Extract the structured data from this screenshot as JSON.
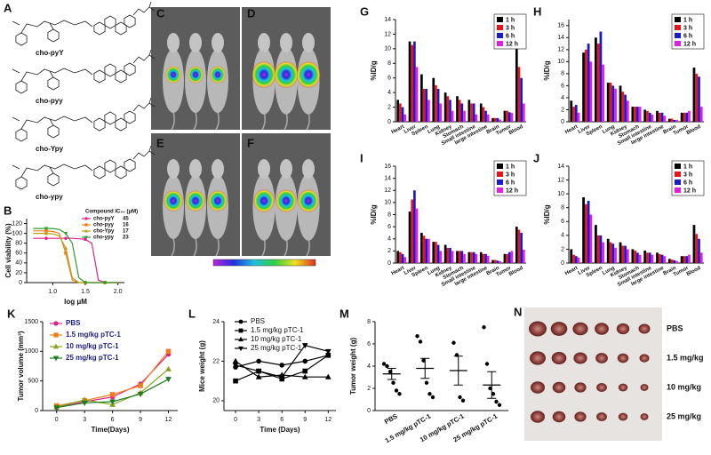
{
  "figure": {
    "A": {
      "panel": "A",
      "compounds": [
        "cho-pyY",
        "cho-pyy",
        "cho-Ypy",
        "cho-ypy"
      ]
    },
    "C": "C",
    "D": "D",
    "E": "E",
    "F": "F",
    "N": {
      "panel": "N",
      "groups": [
        "PBS",
        "1.5 mg/kg",
        "10 mg/kg",
        "25 mg/kg"
      ]
    }
  },
  "chart_data": [
    {
      "type": "line",
      "panel": "B",
      "x_label": "log μM",
      "y_label": "Cell viability (%)",
      "legend_title": "Compound IC₅₀ (μM)",
      "x": [
        0.7,
        0.9,
        1.0,
        1.1,
        1.2,
        1.3,
        1.4,
        1.5,
        1.6,
        1.7,
        1.8,
        2.0
      ],
      "xlim": [
        0.6,
        2.1
      ],
      "xticks": [
        {
          "value": 1,
          "label": "1.0"
        },
        {
          "value": 1.5,
          "label": "1.5"
        },
        {
          "value": 2,
          "label": "2.0"
        }
      ],
      "ylim": [
        0,
        130
      ],
      "yticks": [
        0,
        20,
        40,
        60,
        80,
        100,
        120
      ],
      "series": [
        {
          "name": "cho-pyY",
          "ic50": 45,
          "color": "#e0218a",
          "marker": "circle",
          "values": [
            90,
            90,
            90,
            90,
            90,
            90,
            89,
            88,
            80,
            5,
            0,
            0
          ]
        },
        {
          "name": "cho-pyy",
          "ic50": 16,
          "color": "#f07d1a",
          "marker": "square",
          "values": [
            105,
            105,
            104,
            100,
            60,
            5,
            0,
            0,
            0,
            0,
            0,
            0
          ]
        },
        {
          "name": "cho-Ypy",
          "ic50": 17,
          "color": "#b8a018",
          "marker": "triangle",
          "values": [
            100,
            100,
            99,
            95,
            70,
            10,
            0,
            0,
            0,
            0,
            0,
            0
          ]
        },
        {
          "name": "cho-ypy",
          "ic50": 23,
          "color": "#2e9a2e",
          "marker": "triangle-down",
          "values": [
            110,
            110,
            110,
            108,
            100,
            80,
            10,
            0,
            0,
            0,
            0,
            0
          ]
        }
      ]
    },
    {
      "type": "bar",
      "panel": "G",
      "y_label": "%ID/g",
      "categories": [
        "Heart",
        "Liver",
        "Spleen",
        "Lung",
        "Kidney",
        "Stomach",
        "Small intestine",
        "large intestine",
        "Brain",
        "Tumor",
        "Blood"
      ],
      "ylim": [
        0,
        14
      ],
      "yticks": [
        0,
        2,
        4,
        6,
        8,
        10,
        12,
        14
      ],
      "series": [
        {
          "name": "1 h",
          "color": "#000000",
          "values": [
            3,
            11,
            6.5,
            6,
            4,
            3.5,
            3,
            2.5,
            0.5,
            1.5,
            10
          ]
        },
        {
          "name": "3 h",
          "color": "#e8141c",
          "values": [
            2.5,
            10.5,
            4.5,
            5,
            3.5,
            3,
            2.5,
            2,
            0.5,
            1.5,
            7.5
          ]
        },
        {
          "name": "6 h",
          "color": "#1a1acd",
          "values": [
            2,
            11,
            4.5,
            4.5,
            3,
            2.5,
            2.5,
            1.5,
            0.5,
            1.3,
            6
          ]
        },
        {
          "name": "12 h",
          "color": "#e020e0",
          "values": [
            1,
            7.5,
            3,
            2.5,
            1.5,
            1.5,
            1,
            1,
            0.3,
            1.2,
            2.5
          ]
        }
      ]
    },
    {
      "type": "bar",
      "panel": "H",
      "y_label": "%ID/g",
      "categories": [
        "Heart",
        "Liver",
        "Spleen",
        "Lung",
        "Kidney",
        "Stomach",
        "Small intestine",
        "large intestine",
        "Brain",
        "Tumor",
        "Blood"
      ],
      "ylim": [
        0,
        17
      ],
      "yticks": [
        0,
        2,
        4,
        6,
        8,
        10,
        12,
        14,
        16
      ],
      "series": [
        {
          "name": "1 h",
          "color": "#000000",
          "values": [
            3.5,
            11.5,
            14,
            6.5,
            6,
            2.5,
            2,
            1.8,
            0.5,
            1.5,
            9
          ]
        },
        {
          "name": "3 h",
          "color": "#e8141c",
          "values": [
            2.5,
            12,
            13,
            6.5,
            5,
            2.5,
            1.8,
            1.5,
            0.5,
            1.5,
            8
          ]
        },
        {
          "name": "6 h",
          "color": "#1a1acd",
          "values": [
            2.8,
            13,
            15,
            6,
            4.5,
            2.5,
            1.5,
            1.5,
            0.3,
            1.5,
            7.5
          ]
        },
        {
          "name": "12 h",
          "color": "#e020e0",
          "values": [
            1.5,
            10,
            9.5,
            5.5,
            3.5,
            2.5,
            1.2,
            1,
            0.3,
            1.8,
            2.5
          ]
        }
      ]
    },
    {
      "type": "bar",
      "panel": "I",
      "y_label": "%ID/g",
      "categories": [
        "Heart",
        "Liver",
        "Spleen",
        "Lung",
        "Kidney",
        "Stomach",
        "Small intestine",
        "large intestine",
        "Brain",
        "Tumor",
        "Blood"
      ],
      "ylim": [
        0,
        16
      ],
      "yticks": [
        0,
        2,
        4,
        6,
        8,
        10,
        12,
        14,
        16
      ],
      "series": [
        {
          "name": "1 h",
          "color": "#000000",
          "values": [
            2,
            8.5,
            5,
            3.5,
            3,
            2,
            1.8,
            1.8,
            0.5,
            1.5,
            6
          ]
        },
        {
          "name": "3 h",
          "color": "#e8141c",
          "values": [
            1.8,
            10.5,
            4.5,
            3.5,
            2.5,
            2,
            1.8,
            1.5,
            0.5,
            1.5,
            5.5
          ]
        },
        {
          "name": "6 h",
          "color": "#1a1acd",
          "values": [
            1.5,
            12,
            4,
            3,
            2.5,
            2,
            1.8,
            1.5,
            0.4,
            1.8,
            5
          ]
        },
        {
          "name": "12 h",
          "color": "#e020e0",
          "values": [
            1,
            9,
            4,
            2,
            2,
            1.5,
            1.5,
            1.2,
            0.3,
            2,
            2.2
          ]
        }
      ]
    },
    {
      "type": "bar",
      "panel": "J",
      "y_label": "%ID/g",
      "categories": [
        "Heart",
        "Liver",
        "Spleen",
        "Lung",
        "Kidney",
        "Stomach",
        "Small intestine",
        "large intestine",
        "Brain",
        "Tumor",
        "Blood"
      ],
      "ylim": [
        0,
        14
      ],
      "yticks": [
        0,
        2,
        4,
        6,
        8,
        10,
        12,
        14
      ],
      "series": [
        {
          "name": "1 h",
          "color": "#000000",
          "values": [
            2,
            9.5,
            5.5,
            3.5,
            3,
            2,
            1.8,
            1.5,
            0.6,
            1,
            5.5
          ]
        },
        {
          "name": "3 h",
          "color": "#e8141c",
          "values": [
            1.2,
            8.5,
            4,
            3,
            2.5,
            1.8,
            1.5,
            1.3,
            0.5,
            1,
            4.2
          ]
        },
        {
          "name": "6 h",
          "color": "#1a1acd",
          "values": [
            1,
            9,
            4,
            2.8,
            2.5,
            1.5,
            1.5,
            1.2,
            0.4,
            1,
            3.5
          ]
        },
        {
          "name": "12 h",
          "color": "#e020e0",
          "values": [
            0.8,
            7,
            3,
            2.2,
            2,
            1.2,
            1.2,
            1,
            0.3,
            1.2,
            1.5
          ]
        }
      ]
    },
    {
      "type": "line",
      "panel": "K",
      "x_label": "Time(Days)",
      "y_label": "Tumor volume (mm³)",
      "x": [
        0,
        3,
        6,
        9,
        12
      ],
      "xlim": [
        -1.5,
        13
      ],
      "xticks": [
        0,
        3,
        6,
        9,
        12
      ],
      "ylim": [
        0,
        1500
      ],
      "yticks": [
        0,
        500,
        1000,
        1500
      ],
      "series": [
        {
          "name": "PBS",
          "color": "#e0218a",
          "marker": "circle",
          "values": [
            50,
            150,
            230,
            450,
            950
          ]
        },
        {
          "name": "1.5 mg/kg pTC-1",
          "color": "#f07d1a",
          "marker": "square",
          "values": [
            80,
            170,
            270,
            420,
            1000
          ]
        },
        {
          "name": "10 mg/kg pTC-1",
          "color": "#8aa020",
          "marker": "triangle",
          "values": [
            60,
            180,
            100,
            300,
            700
          ]
        },
        {
          "name": "25 mg/kg pTC-1",
          "color": "#1e7a1e",
          "marker": "triangle-down",
          "values": [
            50,
            130,
            150,
            280,
            530
          ]
        }
      ]
    },
    {
      "type": "line",
      "panel": "L",
      "x_label": "Time (Days)",
      "y_label": "Mice weight (g)",
      "x": [
        0,
        3,
        6,
        9,
        12
      ],
      "xlim": [
        -1.5,
        13
      ],
      "xticks": [
        0,
        3,
        6,
        9,
        12
      ],
      "ylim": [
        19.5,
        24
      ],
      "yticks": [
        20,
        22,
        24
      ],
      "series": [
        {
          "name": "PBS",
          "color": "#000000",
          "marker": "circle",
          "values": [
            21.7,
            22,
            21.8,
            22,
            22.3
          ]
        },
        {
          "name": "1.5 mg/kg pTC-1",
          "color": "#000000",
          "marker": "square",
          "values": [
            21,
            21.5,
            21.1,
            21.5,
            22.3
          ]
        },
        {
          "name": "10 mg/kg pTC-1",
          "color": "#000000",
          "marker": "triangle",
          "values": [
            22,
            21.2,
            21.3,
            21.2,
            21.2
          ]
        },
        {
          "name": "25 mg/kg pTC-1",
          "color": "#000000",
          "marker": "triangle-down",
          "values": [
            21.8,
            21.5,
            21.2,
            22.8,
            22.5
          ]
        }
      ]
    },
    {
      "type": "scatter",
      "panel": "M",
      "y_label": "Tumor weight (g)",
      "categories": [
        "PBS",
        "1.5 mg/kg pTC-1",
        "10 mg/kg pTC-1",
        "25 mg/kg pTC-1"
      ],
      "points": [
        [
          4.2,
          4,
          3.5,
          2.5,
          1.8,
          1.5
        ],
        [
          6.7,
          6.2,
          4.5,
          2.5,
          1.5,
          1.2
        ],
        [
          6.1,
          5,
          1.2,
          0.9
        ],
        [
          7.5,
          4.2,
          2,
          1.5,
          0.8,
          0.5
        ]
      ],
      "means": [
        3.3,
        3.8,
        3.6,
        2.3
      ],
      "errors": [
        0.5,
        0.9,
        1.3,
        1.2
      ],
      "color": "#000000",
      "ylim": [
        0,
        8
      ],
      "yticks": [
        0,
        2,
        4,
        6,
        8
      ]
    }
  ]
}
